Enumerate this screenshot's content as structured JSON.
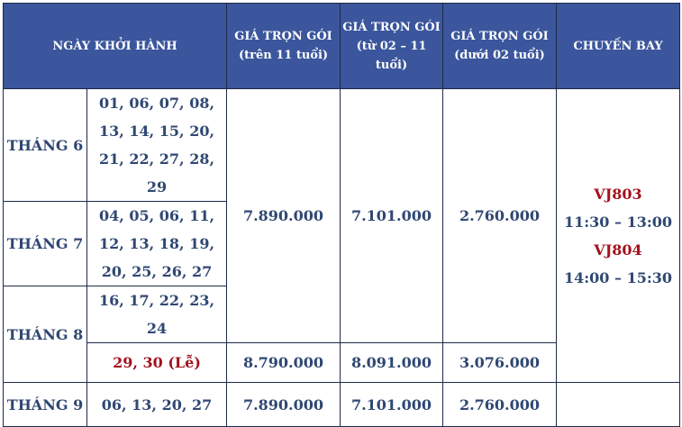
{
  "header": {
    "departure": "NGÀY KHỞI HÀNH",
    "price_adult": "GIÁ TRỌN GÓI (trên 11 tuổi)",
    "price_adult_l1": "GIÁ TRỌN GÓI",
    "price_adult_l2": "(trên 11 tuổi)",
    "price_child_l1": "GIÁ TRỌN GÓI",
    "price_child_l2": "(từ 02 – 11",
    "price_child_l3": "tuổi)",
    "price_infant_l1": "GIÁ TRỌN GÓI",
    "price_infant_l2": "(dưới 02 tuổi)",
    "flight": "CHUYẾN BAY"
  },
  "rows": {
    "jun": {
      "month": "THÁNG 6",
      "dates_l1": "01, 06, 07, 08,",
      "dates_l2": "13, 14, 15, 20,",
      "dates_l3": "21, 22, 27, 28, 29"
    },
    "jul": {
      "month": "THÁNG 7",
      "dates_l1": "04, 05, 06, 11,",
      "dates_l2": "12, 13, 18, 19,",
      "dates_l3": "20, 25, 26, 27"
    },
    "aug": {
      "month": "THÁNG 8",
      "dates_regular": "16, 17, 22, 23, 24",
      "dates_holiday": "29, 30 (Lễ)"
    },
    "sep": {
      "month": "THÁNG 9",
      "dates": "06, 13, 20, 27"
    }
  },
  "prices": {
    "regular": {
      "adult": "7.890.000",
      "child": "7.101.000",
      "infant": "2.760.000"
    },
    "holiday": {
      "adult": "8.790.000",
      "child": "8.091.000",
      "infant": "3.076.000"
    },
    "sep": {
      "adult": "7.890.000",
      "child": "7.101.000",
      "infant": "2.760.000"
    }
  },
  "flights": {
    "outbound_code": "VJ803",
    "outbound_time": "11:30 – 13:00",
    "return_code": "VJ804",
    "return_time": "14:00 – 15:30"
  },
  "colors": {
    "header_bg": "#3b569c",
    "text": "#2f4772",
    "holiday": "#a3121d"
  }
}
